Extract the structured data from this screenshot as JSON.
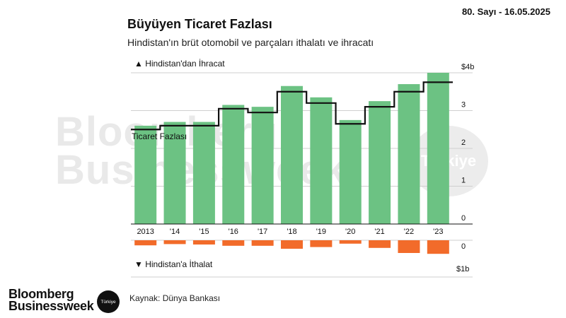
{
  "header": {
    "issue": "80. Sayı - 16.05.2025",
    "title": "Büyüyen Ticaret Fazlası",
    "subtitle": "Hindistan'ın brüt otomobil ve parçaları ithalatı ve ihracatı"
  },
  "chart_data": {
    "type": "bar",
    "categories": [
      "2013",
      "'14",
      "'15",
      "'16",
      "'17",
      "'18",
      "'19",
      "'20",
      "'21",
      "'22",
      "'23"
    ],
    "series": [
      {
        "values": [
          2.6,
          2.7,
          2.7,
          3.15,
          3.1,
          3.65,
          3.35,
          2.75,
          3.25,
          3.7,
          4.0
        ]
      },
      {
        "values": [
          0.12,
          0.09,
          0.1,
          0.13,
          0.13,
          0.2,
          0.16,
          0.08,
          0.18,
          0.3,
          0.32
        ]
      },
      {
        "name": "Ticaret Fazlası",
        "values": [
          2.5,
          2.6,
          2.6,
          3.05,
          2.95,
          3.5,
          3.2,
          2.65,
          3.1,
          3.5,
          3.75
        ]
      }
    ],
    "top_axis": {
      "label": "▲ Hindistan'dan İhracat",
      "ticks": [
        "$4b",
        "3",
        "2",
        "1",
        "0"
      ],
      "ylim": [
        0,
        4
      ]
    },
    "bottom_axis": {
      "label": "▼ Hindistan'a İthalat",
      "ticks": [
        "0",
        "$1b"
      ],
      "ylim": [
        0,
        1
      ]
    },
    "surplus_label": "Ticaret Fazlası",
    "colors": {
      "exports": "#6cc283",
      "imports": "#f26b2a",
      "surplus": "#111111",
      "grid": "#cfcfcf"
    },
    "grid": true
  },
  "watermark": {
    "line1": "Bloomberg",
    "line2": "Businessweek",
    "badge": "Türkiye"
  },
  "footer": {
    "logo_line1": "Bloomberg",
    "logo_line2": "Businessweek",
    "logo_badge": "Türkiye",
    "source": "Kaynak: Dünya Bankası"
  }
}
